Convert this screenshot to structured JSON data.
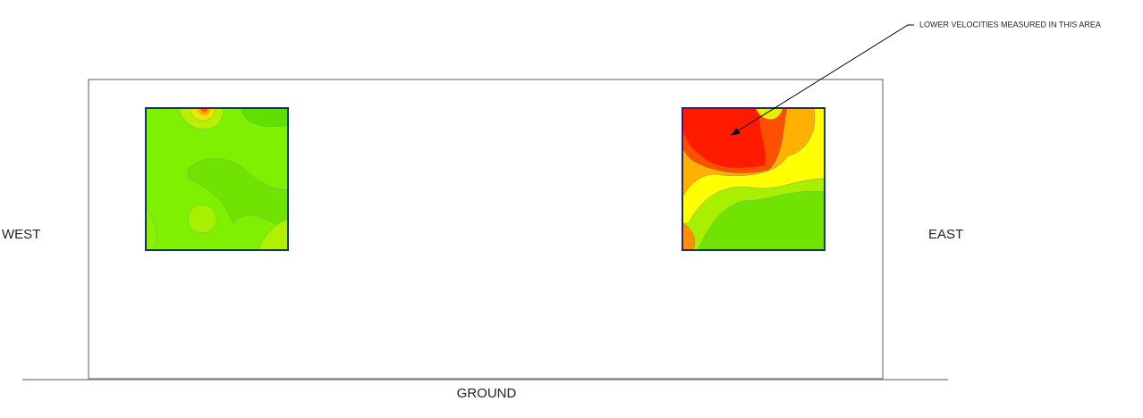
{
  "annotation": "LOWER VELOCITIES MEASURED IN THIS AREA",
  "labels": {
    "west": "WEST",
    "east": "EAST",
    "ground": "GROUND"
  }
}
